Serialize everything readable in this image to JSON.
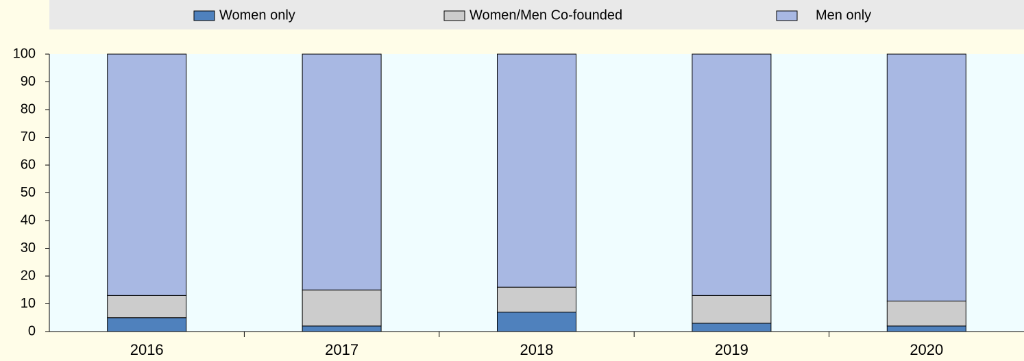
{
  "chart_data": {
    "type": "stacked_bar",
    "categories": [
      "2016",
      "2017",
      "2018",
      "2019",
      "2020"
    ],
    "series": [
      {
        "name": "Women only",
        "color": "#4f81bd",
        "values": [
          5,
          2,
          7,
          3,
          2
        ]
      },
      {
        "name": "Women/Men Co-founded",
        "color": "#cccccc",
        "values": [
          8,
          13,
          9,
          10,
          9
        ]
      },
      {
        "name": "Men only",
        "color": "#a8b8e3",
        "values": [
          87,
          85,
          84,
          87,
          89
        ]
      }
    ],
    "ylim": [
      0,
      100
    ],
    "yticks": [
      0,
      10,
      20,
      30,
      40,
      50,
      60,
      70,
      80,
      90,
      100
    ],
    "grid": false,
    "legend": "top"
  }
}
